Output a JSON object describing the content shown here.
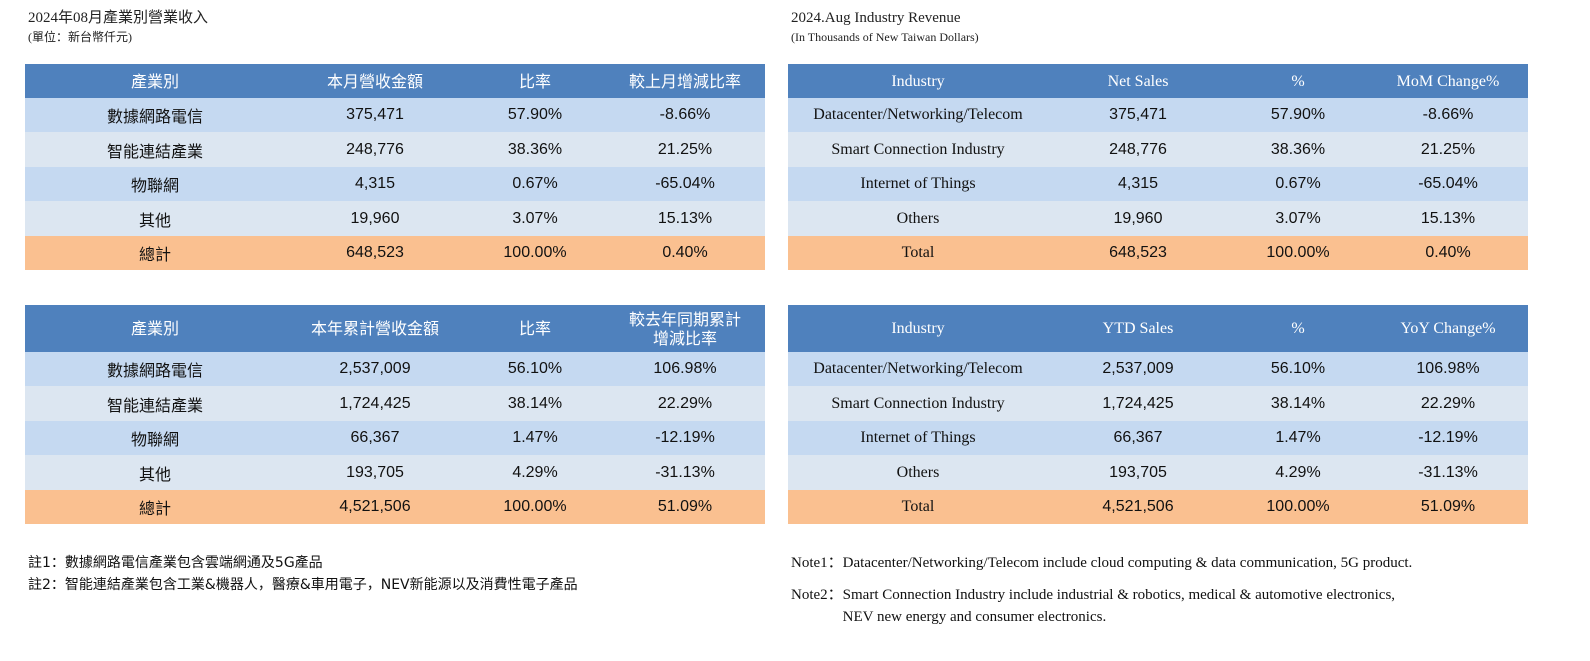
{
  "zh": {
    "title": "2024年08月產業別營業收入",
    "unit": "(單位：新台幣仟元)",
    "monthly": {
      "headers": [
        "產業別",
        "本月營收金額",
        "比率",
        "較上月增減比率"
      ],
      "rows": [
        [
          "數據網路電信",
          "375,471",
          "57.90%",
          "-8.66%"
        ],
        [
          "智能連結產業",
          "248,776",
          "38.36%",
          "21.25%"
        ],
        [
          "物聯網",
          "4,315",
          "0.67%",
          "-65.04%"
        ],
        [
          "其他",
          "19,960",
          "3.07%",
          "15.13%"
        ]
      ],
      "total": [
        "總計",
        "648,523",
        "100.00%",
        "0.40%"
      ]
    },
    "ytd": {
      "headers": [
        "產業別",
        "本年累計營收金額",
        "比率",
        "較去年同期累計",
        "增減比率"
      ],
      "rows": [
        [
          "數據網路電信",
          "2,537,009",
          "56.10%",
          "106.98%"
        ],
        [
          "智能連結產業",
          "1,724,425",
          "38.14%",
          "22.29%"
        ],
        [
          "物聯網",
          "66,367",
          "1.47%",
          "-12.19%"
        ],
        [
          "其他",
          "193,705",
          "4.29%",
          "-31.13%"
        ]
      ],
      "total": [
        "總計",
        "4,521,506",
        "100.00%",
        "51.09%"
      ]
    },
    "notes": [
      "註1：數據網路電信產業包含雲端網通及5G產品",
      "註2：智能連結產業包含工業&機器人，醫療&車用電子，NEV新能源以及消費性電子產品"
    ]
  },
  "en": {
    "title": "2024.Aug Industry Revenue",
    "unit": "(In Thousands of New Taiwan Dollars)",
    "monthly": {
      "headers": [
        "Industry",
        "Net Sales",
        "%",
        "MoM Change%"
      ],
      "rows": [
        [
          "Datacenter/Networking/Telecom",
          "375,471",
          "57.90%",
          "-8.66%"
        ],
        [
          "Smart Connection Industry",
          "248,776",
          "38.36%",
          "21.25%"
        ],
        [
          "Internet of Things",
          "4,315",
          "0.67%",
          "-65.04%"
        ],
        [
          "Others",
          "19,960",
          "3.07%",
          "15.13%"
        ]
      ],
      "total": [
        "Total",
        "648,523",
        "100.00%",
        "0.40%"
      ]
    },
    "ytd": {
      "headers": [
        "Industry",
        "YTD Sales",
        "%",
        "YoY Change%"
      ],
      "rows": [
        [
          "Datacenter/Networking/Telecom",
          "2,537,009",
          "56.10%",
          "106.98%"
        ],
        [
          "Smart Connection Industry",
          "1,724,425",
          "38.14%",
          "22.29%"
        ],
        [
          "Internet of Things",
          "66,367",
          "1.47%",
          "-12.19%"
        ],
        [
          "Others",
          "193,705",
          "4.29%",
          "-31.13%"
        ]
      ],
      "total": [
        "Total",
        "4,521,506",
        "100.00%",
        "51.09%"
      ]
    },
    "notes": {
      "note1": "Note1：Datacenter/Networking/Telecom include cloud computing & data communication, 5G product.",
      "note2_prefix": "Note2：",
      "note2_line1": "Smart Connection Industry include industrial & robotics, medical & automotive electronics,",
      "note2_line2": "NEV new energy and consumer electronics."
    }
  }
}
